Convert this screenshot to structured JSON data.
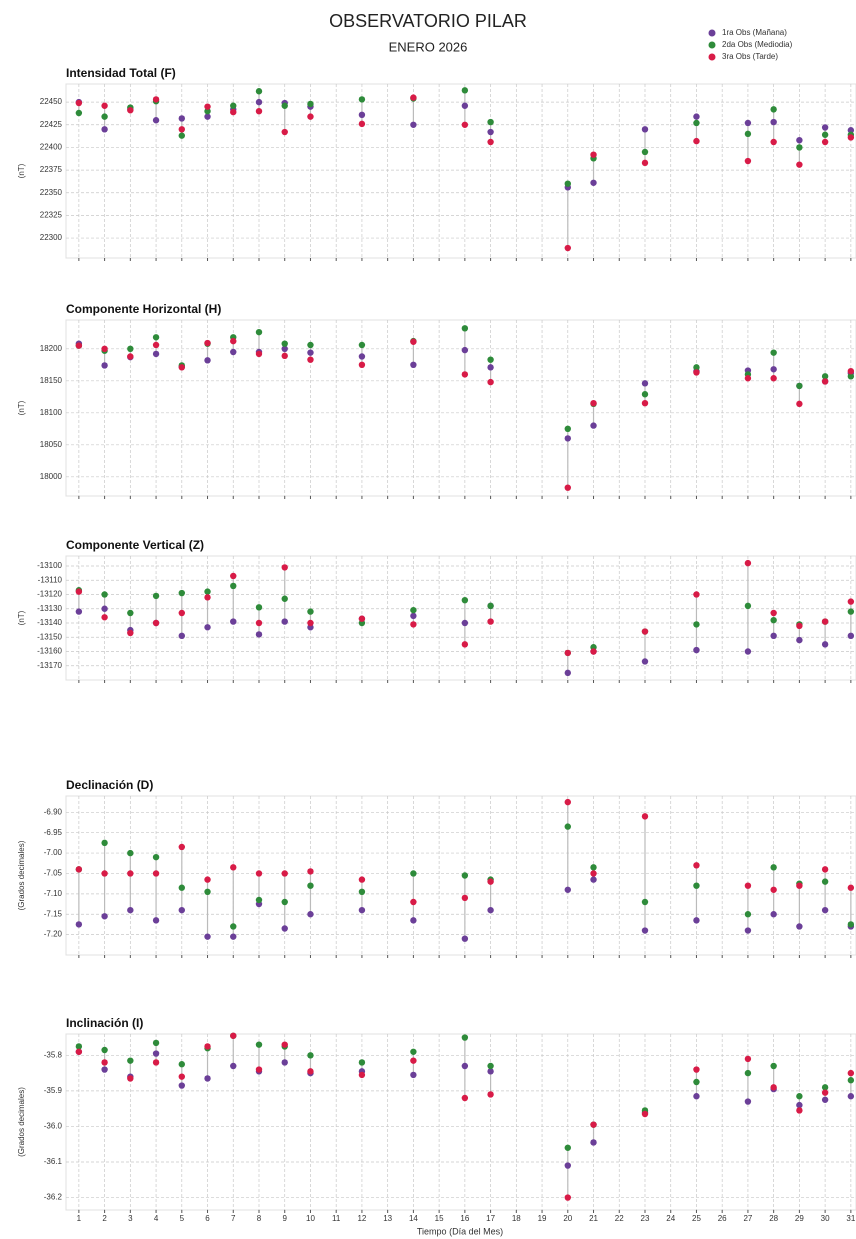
{
  "title": "OBSERVATORIO PILAR",
  "subtitle": "ENERO 2026",
  "xlabel": "Tiempo (Día del Mes)",
  "chart_data": [
    {
      "type": "scatter",
      "title": "Intensidad Total (F)",
      "ylabel": "(nT)",
      "x": [
        1,
        2,
        3,
        4,
        5,
        6,
        7,
        8,
        9,
        10,
        12,
        14,
        16,
        17,
        20,
        21,
        23,
        25,
        27,
        28,
        29,
        30,
        31
      ],
      "xlim": [
        0.5,
        31.2
      ],
      "xticks": [
        1,
        2,
        3,
        4,
        5,
        6,
        7,
        8,
        9,
        10,
        11,
        12,
        13,
        14,
        15,
        16,
        17,
        18,
        19,
        20,
        21,
        22,
        23,
        24,
        25,
        26,
        27,
        28,
        29,
        30,
        31
      ],
      "ylim": [
        22278,
        22470
      ],
      "yticks": [
        22300,
        22325,
        22350,
        22375,
        22400,
        22425,
        22450
      ],
      "grid": true,
      "series": [
        {
          "name": "1ra Obs (Mañana)",
          "color": "#6b3f98",
          "values": [
            22450,
            22420,
            22442,
            22430,
            22432,
            22434,
            22442,
            22450,
            22449,
            22445,
            22436,
            22425,
            22446,
            22417,
            22356,
            22361,
            22420,
            22434,
            22427,
            22428,
            22408,
            22422,
            22419
          ]
        },
        {
          "name": "2da Obs (Mediodia)",
          "color": "#2e8b3a",
          "values": [
            22438,
            22434,
            22444,
            22451,
            22413,
            22440,
            22446,
            22462,
            22446,
            22448,
            22453,
            22454,
            22463,
            22428,
            22360,
            22388,
            22395,
            22427,
            22415,
            22442,
            22400,
            22414,
            22414
          ]
        },
        {
          "name": "3ra Obs (Tarde)",
          "color": "#d81b47",
          "values": [
            22449,
            22446,
            22441,
            22453,
            22420,
            22445,
            22439,
            22440,
            22417,
            22434,
            22426,
            22455,
            22425,
            22406,
            22289,
            22392,
            22383,
            22407,
            22385,
            22406,
            22381,
            22406,
            22411
          ]
        }
      ]
    },
    {
      "type": "scatter",
      "title": "Componente Horizontal (H)",
      "ylabel": "(nT)",
      "x": [
        1,
        2,
        3,
        4,
        5,
        6,
        7,
        8,
        9,
        10,
        12,
        14,
        16,
        17,
        20,
        21,
        23,
        25,
        27,
        28,
        29,
        30,
        31
      ],
      "xlim": [
        0.5,
        31.2
      ],
      "xticks": [
        1,
        2,
        3,
        4,
        5,
        6,
        7,
        8,
        9,
        10,
        11,
        12,
        13,
        14,
        15,
        16,
        17,
        18,
        19,
        20,
        21,
        22,
        23,
        24,
        25,
        26,
        27,
        28,
        29,
        30,
        31
      ],
      "ylim": [
        17970,
        18245
      ],
      "yticks": [
        18000,
        18050,
        18100,
        18150,
        18200
      ],
      "grid": true,
      "series": [
        {
          "name": "1ra Obs (Mañana)",
          "color": "#6b3f98",
          "values": [
            18208,
            18174,
            18187,
            18192,
            18172,
            18182,
            18195,
            18195,
            18200,
            18194,
            18188,
            18175,
            18198,
            18171,
            18060,
            18080,
            18146,
            18165,
            18166,
            18168,
            18142,
            18149,
            18162
          ]
        },
        {
          "name": "2da Obs (Mediodia)",
          "color": "#2e8b3a",
          "values": [
            18205,
            18197,
            18200,
            18218,
            18174,
            18208,
            18218,
            18226,
            18208,
            18206,
            18206,
            18212,
            18232,
            18183,
            18075,
            18114,
            18129,
            18171,
            18160,
            18194,
            18142,
            18157,
            18157
          ]
        },
        {
          "name": "3ra Obs (Tarde)",
          "color": "#d81b47",
          "values": [
            18205,
            18200,
            18188,
            18206,
            18171,
            18209,
            18212,
            18192,
            18189,
            18183,
            18175,
            18211,
            18160,
            18148,
            17983,
            18115,
            18115,
            18163,
            18154,
            18154,
            18114,
            18149,
            18165
          ]
        }
      ]
    },
    {
      "type": "scatter",
      "title": "Componente Vertical (Z)",
      "ylabel": "(nT)",
      "x": [
        1,
        2,
        3,
        4,
        5,
        6,
        7,
        8,
        9,
        10,
        12,
        14,
        16,
        17,
        20,
        21,
        23,
        25,
        27,
        28,
        29,
        30,
        31
      ],
      "xlim": [
        0.5,
        31.2
      ],
      "xticks": [
        1,
        2,
        3,
        4,
        5,
        6,
        7,
        8,
        9,
        10,
        11,
        12,
        13,
        14,
        15,
        16,
        17,
        18,
        19,
        20,
        21,
        22,
        23,
        24,
        25,
        26,
        27,
        28,
        29,
        30,
        31
      ],
      "ylim": [
        -13180,
        -13093
      ],
      "yticks": [
        -13170,
        -13160,
        -13150,
        -13140,
        -13130,
        -13120,
        -13110,
        -13100
      ],
      "grid": true,
      "series": [
        {
          "name": "1ra Obs (Mañana)",
          "color": "#6b3f98",
          "values": [
            -13132,
            -13130,
            -13145,
            -13140,
            -13149,
            -13143,
            -13139,
            -13148,
            -13139,
            -13143,
            -13137,
            -13135,
            -13140,
            -13128,
            -13175,
            -13160,
            -13167,
            -13159,
            -13160,
            -13149,
            -13152,
            -13155,
            -13149
          ]
        },
        {
          "name": "2da Obs (Mediodia)",
          "color": "#2e8b3a",
          "values": [
            -13117,
            -13120,
            -13133,
            -13121,
            -13119,
            -13118,
            -13114,
            -13129,
            -13123,
            -13132,
            -13140,
            -13131,
            -13124,
            -13128,
            -13161,
            -13157,
            -13146,
            -13141,
            -13128,
            -13138,
            -13141,
            -13139,
            -13132
          ]
        },
        {
          "name": "3ra Obs (Tarde)",
          "color": "#d81b47",
          "values": [
            -13118,
            -13136,
            -13147,
            -13140,
            -13133,
            -13122,
            -13107,
            -13140,
            -13101,
            -13140,
            -13137,
            -13141,
            -13155,
            -13139,
            -13161,
            -13160,
            -13146,
            -13120,
            -13098,
            -13133,
            -13142,
            -13139,
            -13125
          ]
        }
      ]
    },
    {
      "type": "scatter",
      "title": "Declinación (D)",
      "ylabel": "(Grados decimales)",
      "x": [
        1,
        2,
        3,
        4,
        5,
        6,
        7,
        8,
        9,
        10,
        12,
        14,
        16,
        17,
        20,
        21,
        23,
        25,
        27,
        28,
        29,
        30,
        31
      ],
      "xlim": [
        0.5,
        31.2
      ],
      "xticks": [
        1,
        2,
        3,
        4,
        5,
        6,
        7,
        8,
        9,
        10,
        11,
        12,
        13,
        14,
        15,
        16,
        17,
        18,
        19,
        20,
        21,
        22,
        23,
        24,
        25,
        26,
        27,
        28,
        29,
        30,
        31
      ],
      "ylim": [
        -7.25,
        -6.86
      ],
      "yticks": [
        {
          "value": -7.2,
          "label": "-7.20"
        },
        -7.15,
        {
          "value": -7.1,
          "label": "-7.10"
        },
        -7.05,
        {
          "value": -7,
          "label": "-7.00"
        },
        -6.95,
        {
          "value": -6.9,
          "label": "-6.90"
        }
      ],
      "grid": true,
      "series": [
        {
          "name": "1ra Obs (Mañana)",
          "color": "#6b3f98",
          "values": [
            -7.175,
            -7.155,
            -7.14,
            -7.165,
            -7.14,
            -7.205,
            -7.205,
            -7.125,
            -7.185,
            -7.15,
            -7.14,
            -7.165,
            -7.21,
            -7.14,
            -7.09,
            -7.065,
            -7.19,
            -7.165,
            -7.19,
            -7.15,
            -7.18,
            -7.14,
            -7.18
          ]
        },
        {
          "name": "2da Obs (Mediodia)",
          "color": "#2e8b3a",
          "values": [
            -7.04,
            -6.975,
            -7.0,
            -7.01,
            -7.085,
            -7.095,
            -7.18,
            -7.115,
            -7.12,
            -7.08,
            -7.095,
            -7.05,
            -7.055,
            -7.065,
            -6.935,
            -7.035,
            -7.12,
            -7.08,
            -7.15,
            -7.035,
            -7.075,
            -7.07,
            -7.175
          ]
        },
        {
          "name": "3ra Obs (Tarde)",
          "color": "#d81b47",
          "values": [
            -7.04,
            -7.05,
            -7.05,
            -7.05,
            -6.985,
            -7.065,
            -7.035,
            -7.05,
            -7.05,
            -7.045,
            -7.065,
            -7.12,
            -7.11,
            -7.07,
            -6.875,
            -7.05,
            -6.91,
            -7.03,
            -7.08,
            -7.09,
            -7.08,
            -7.04,
            -7.085
          ]
        }
      ]
    },
    {
      "type": "scatter",
      "title": "Inclinación (I)",
      "ylabel": "(Grados decimales)",
      "x": [
        1,
        2,
        3,
        4,
        5,
        6,
        7,
        8,
        9,
        10,
        12,
        14,
        16,
        17,
        20,
        21,
        23,
        25,
        27,
        28,
        29,
        30,
        31
      ],
      "xlim": [
        0.5,
        31.2
      ],
      "xticks": [
        1,
        2,
        3,
        4,
        5,
        6,
        7,
        8,
        9,
        10,
        11,
        12,
        13,
        14,
        15,
        16,
        17,
        18,
        19,
        20,
        21,
        22,
        23,
        24,
        25,
        26,
        27,
        28,
        29,
        30,
        31
      ],
      "ylim": [
        -36.235,
        -35.74
      ],
      "yticks": [
        -36.2,
        -36.1,
        {
          "value": -36,
          "label": "-36.0"
        },
        -35.9,
        -35.8
      ],
      "grid": true,
      "series": [
        {
          "name": "1ra Obs (Mañana)",
          "color": "#6b3f98",
          "values": [
            -35.79,
            -35.84,
            -35.86,
            -35.795,
            -35.885,
            -35.865,
            -35.83,
            -35.845,
            -35.82,
            -35.85,
            -35.845,
            -35.855,
            -35.83,
            -35.845,
            -36.11,
            -36.045,
            -35.96,
            -35.915,
            -35.93,
            -35.895,
            -35.94,
            -35.925,
            -35.915
          ]
        },
        {
          "name": "2da Obs (Mediodia)",
          "color": "#2e8b3a",
          "values": [
            -35.775,
            -35.785,
            -35.815,
            -35.765,
            -35.825,
            -35.78,
            -35.745,
            -35.77,
            -35.775,
            -35.8,
            -35.82,
            -35.79,
            -35.75,
            -35.83,
            -36.06,
            -35.995,
            -35.955,
            -35.875,
            -35.85,
            -35.83,
            -35.915,
            -35.89,
            -35.87
          ]
        },
        {
          "name": "3ra Obs (Tarde)",
          "color": "#d81b47",
          "values": [
            -35.79,
            -35.82,
            -35.865,
            -35.82,
            -35.86,
            -35.775,
            -35.745,
            -35.84,
            -35.77,
            -35.845,
            -35.855,
            -35.815,
            -35.92,
            -35.91,
            -36.2,
            -35.995,
            -35.965,
            -35.84,
            -35.81,
            -35.89,
            -35.955,
            -35.905,
            -35.85
          ]
        }
      ]
    }
  ]
}
